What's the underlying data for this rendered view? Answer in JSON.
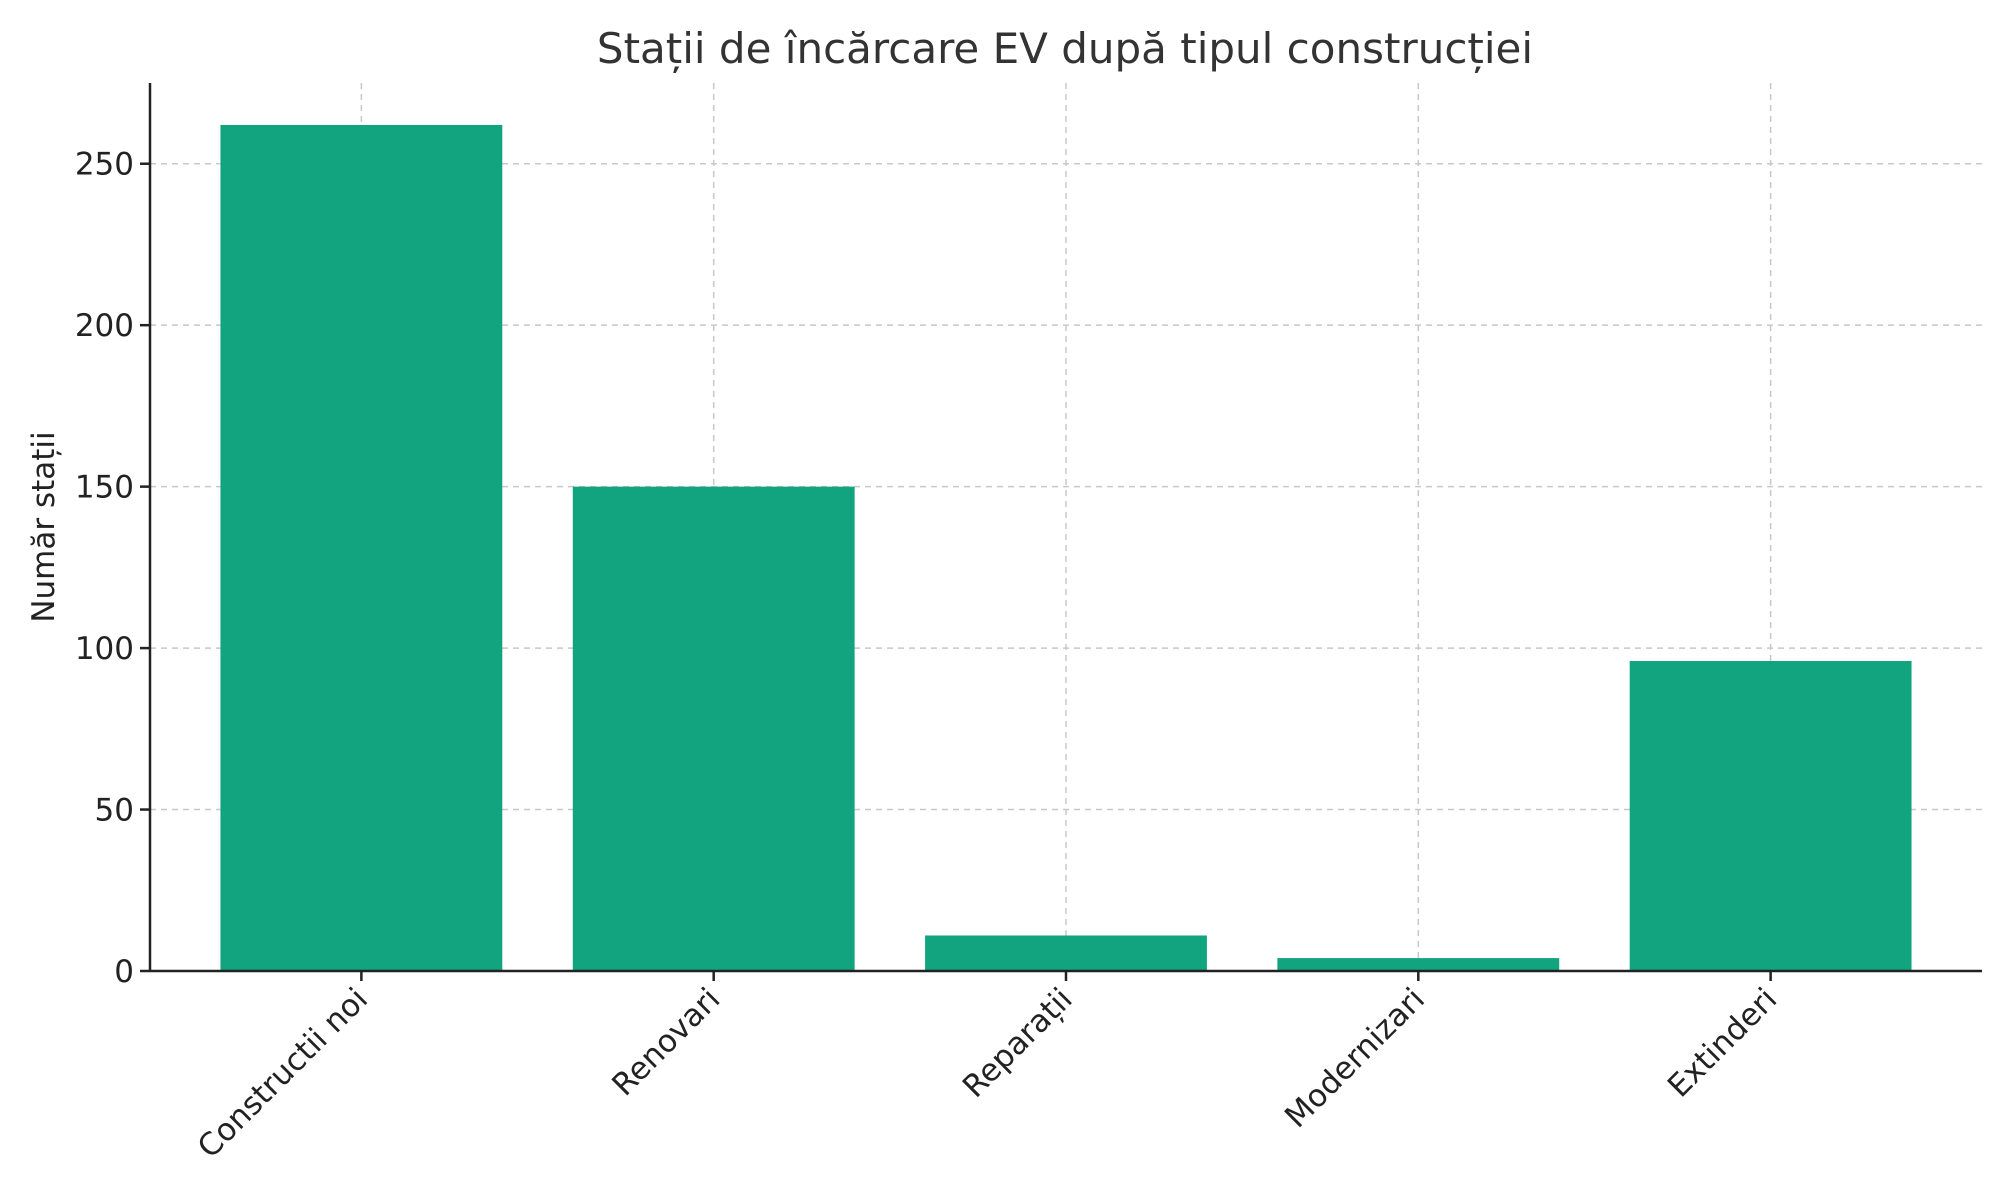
{
  "chart_data": {
    "type": "bar",
    "title": "Stații de încărcare EV după tipul construcției",
    "xlabel": "",
    "ylabel": "Număr stații",
    "categories": [
      "Constructii noi",
      "Renovari",
      "Reparații",
      "Modernizari",
      "Extinderi"
    ],
    "values": [
      262,
      150,
      11,
      4,
      96
    ],
    "ylim": [
      0,
      275
    ],
    "yticks": [
      0,
      50,
      100,
      150,
      200,
      250
    ],
    "bar_color": "#12a37f",
    "grid": true,
    "legend": "none"
  }
}
